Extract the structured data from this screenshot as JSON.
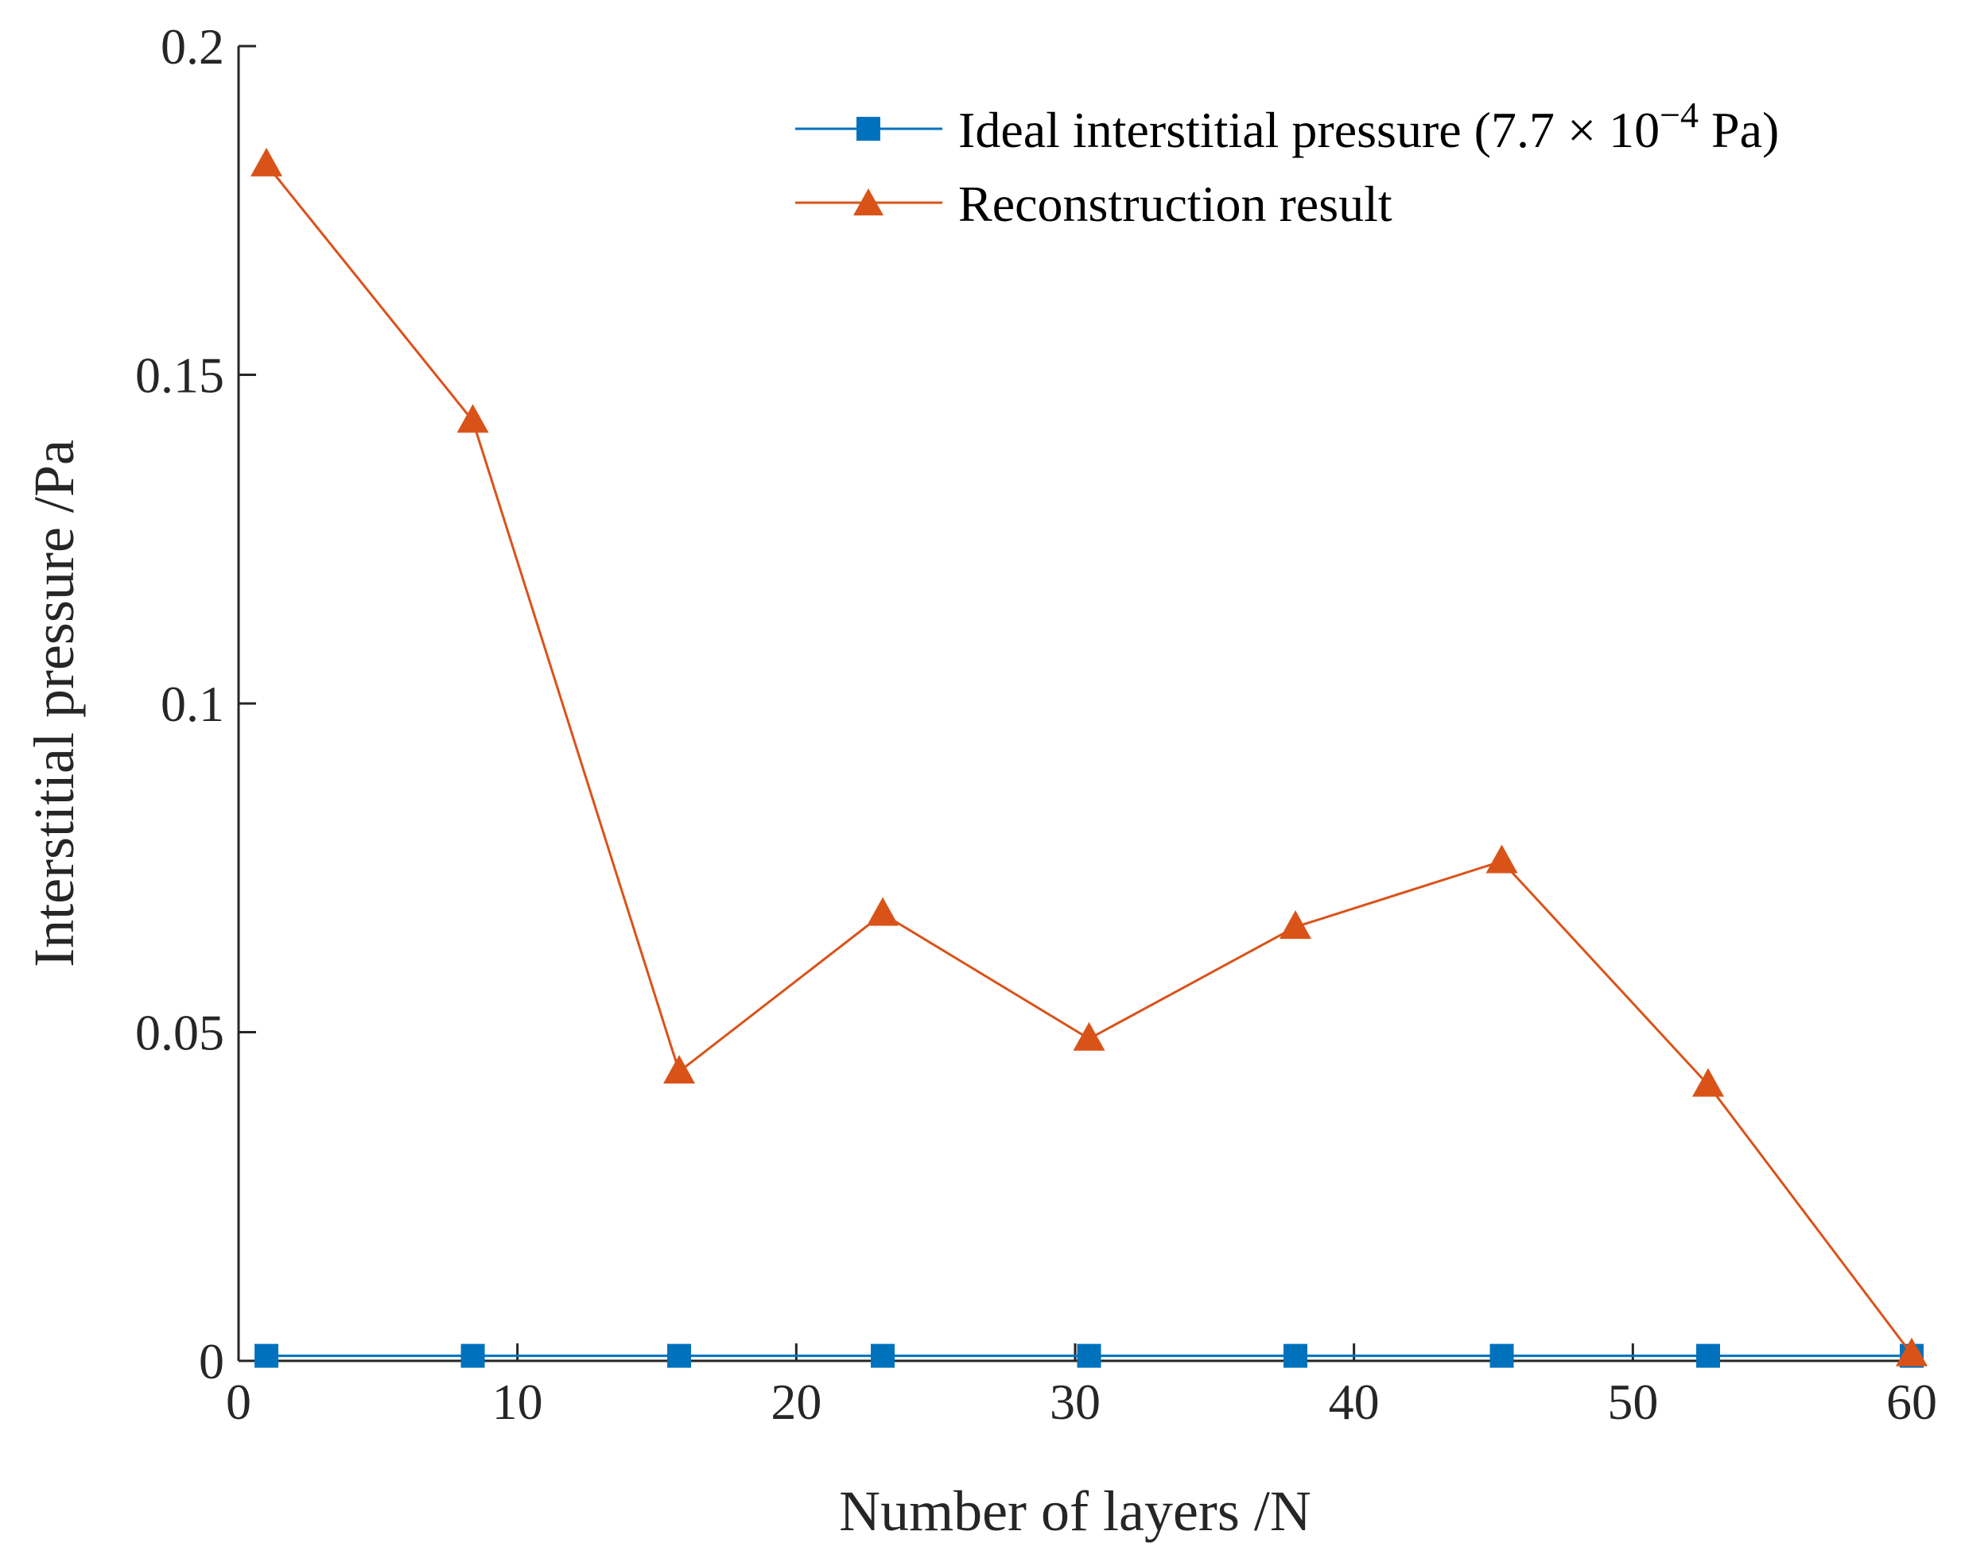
{
  "chart_data": {
    "type": "line",
    "title": "",
    "xlabel": "Number of layers /N",
    "ylabel": "Interstitial pressure /Pa",
    "xlim": [
      0,
      60
    ],
    "ylim": [
      0,
      0.2
    ],
    "xticks": [
      "0",
      "10",
      "20",
      "30",
      "40",
      "50",
      "60"
    ],
    "yticks": [
      "0",
      "0.05",
      "0.1",
      "0.15",
      "0.2"
    ],
    "x": [
      1,
      8.4,
      15.8,
      23.1,
      30.5,
      37.9,
      45.3,
      52.7,
      60
    ],
    "series": [
      {
        "name": "Ideal interstitial pressure (7.7 × 10",
        "name_sup": "−4",
        "name_tail": " Pa)",
        "marker": "square",
        "color": "#0072BD",
        "values": [
          0.00077,
          0.00077,
          0.00077,
          0.00077,
          0.00077,
          0.00077,
          0.00077,
          0.00077,
          0.00077
        ]
      },
      {
        "name": "Reconstruction result",
        "marker": "triangle",
        "color": "#D95319",
        "values": [
          0.182,
          0.143,
          0.044,
          0.068,
          0.049,
          0.066,
          0.076,
          0.042,
          0.001
        ]
      }
    ],
    "legend_position": "top-right"
  }
}
